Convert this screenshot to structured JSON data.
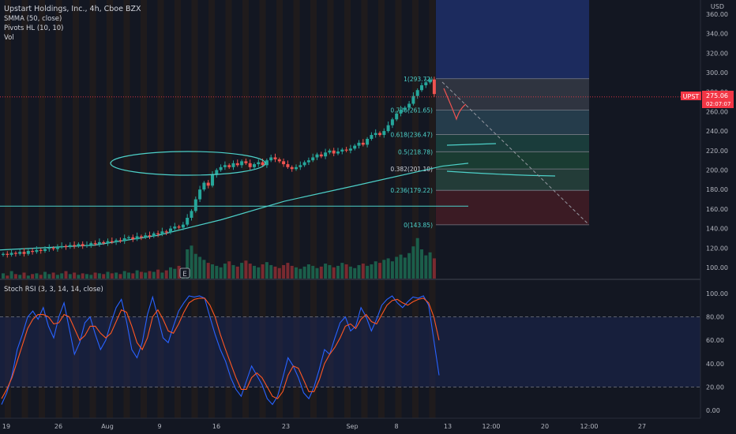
{
  "header": {
    "symbol_line": "Upstart Holdings, Inc., 4h, Cboe BZX",
    "indicators": [
      "SMMA (50, close)",
      "Pivots HL (10, 10)",
      "Vol"
    ]
  },
  "currency_label": "USD",
  "stoch_label": "Stoch RSI (3, 3, 14, 14, close)",
  "price_badge": {
    "ticker": "UPST",
    "price": "275.06",
    "countdown": "02:07:07"
  },
  "earnings_marker": "E",
  "colors": {
    "background": "#131722",
    "up": "#26a69a",
    "down": "#ef5350",
    "smma": "#4dd0c8",
    "stoch_k": "#2962ff",
    "stoch_d": "#ff5722",
    "axis_text": "#b2b5be",
    "badge": "#f23645"
  },
  "chart_data": [
    {
      "type": "candlestick",
      "title": "Upstart Holdings, Inc., 4h, Cboe BZX",
      "ylim": [
        85,
        366
      ],
      "y_ticks": [
        "100.00",
        "120.00",
        "140.00",
        "160.00",
        "180.00",
        "200.00",
        "220.00",
        "240.00",
        "260.00",
        "280.00",
        "300.00",
        "320.00",
        "340.00",
        "360.00"
      ],
      "x_labels": [
        "19",
        "26",
        "Aug",
        "9",
        "16",
        "23",
        "Sep",
        "8",
        "13",
        "12:00",
        "20",
        "12:00",
        "27"
      ],
      "closes": [
        114,
        113,
        115,
        114,
        116,
        114,
        117,
        116,
        118,
        117,
        119,
        120,
        119,
        121,
        122,
        121,
        123,
        122,
        124,
        122,
        123,
        125,
        124,
        126,
        125,
        127,
        126,
        128,
        127,
        130,
        131,
        129,
        132,
        131,
        133,
        132,
        135,
        134,
        137,
        136,
        140,
        142,
        141,
        144,
        151,
        158,
        170,
        180,
        187,
        184,
        195,
        200,
        203,
        205,
        203,
        207,
        205,
        209,
        207,
        203,
        206,
        208,
        205,
        210,
        213,
        211,
        209,
        206,
        203,
        201,
        203,
        205,
        208,
        210,
        213,
        216,
        214,
        218,
        220,
        217,
        219,
        221,
        220,
        222,
        225,
        228,
        226,
        232,
        236,
        238,
        236,
        240,
        246,
        252,
        258,
        262,
        264,
        268,
        276,
        282,
        287,
        290,
        293,
        278
      ],
      "smma": {
        "name": "SMMA (50, close)",
        "points": [
          [
            0,
            118
          ],
          [
            120,
            123
          ],
          [
            200,
            133
          ],
          [
            280,
            149
          ],
          [
            360,
            168
          ],
          [
            450,
            184
          ],
          [
            560,
            204
          ],
          [
            593,
            207
          ]
        ]
      },
      "horizontal_line": 163,
      "fibonacci": [
        {
          "label": "1(293.72)",
          "level": 293.72
        },
        {
          "label": "0.786(261.65)",
          "level": 261.65
        },
        {
          "label": "0.618(236.47)",
          "level": 236.47
        },
        {
          "label": "0.5(218.78)",
          "level": 218.78
        },
        {
          "label": "0.382(201.10)",
          "level": 201.1
        },
        {
          "label": "0.236(179.22)",
          "level": 179.22
        },
        {
          "label": "0(143.85)",
          "level": 143.85
        }
      ],
      "volume": [
        8,
        5,
        11,
        7,
        6,
        9,
        5,
        7,
        8,
        6,
        10,
        7,
        9,
        6,
        8,
        11,
        7,
        9,
        6,
        8,
        7,
        6,
        9,
        8,
        7,
        10,
        8,
        9,
        7,
        11,
        9,
        8,
        12,
        10,
        9,
        11,
        10,
        13,
        9,
        12,
        16,
        14,
        18,
        15,
        40,
        45,
        34,
        30,
        26,
        22,
        20,
        18,
        16,
        21,
        24,
        19,
        17,
        22,
        25,
        21,
        18,
        16,
        20,
        23,
        19,
        17,
        15,
        19,
        22,
        18,
        16,
        14,
        17,
        20,
        18,
        15,
        17,
        21,
        19,
        16,
        18,
        22,
        20,
        17,
        15,
        19,
        21,
        18,
        20,
        24,
        22,
        26,
        28,
        24,
        30,
        33,
        29,
        35,
        44,
        55,
        40,
        32,
        36,
        28
      ]
    },
    {
      "type": "line",
      "title": "Stoch RSI (3, 3, 14, 14, close)",
      "ylim": [
        -8,
        110
      ],
      "y_ticks": [
        "0.00",
        "20.00",
        "40.00",
        "60.00",
        "80.00",
        "100.00"
      ],
      "bands": [
        20,
        80
      ],
      "series": [
        {
          "name": "K",
          "values": [
            5,
            15,
            30,
            52,
            65,
            80,
            85,
            78,
            88,
            72,
            62,
            80,
            92,
            70,
            48,
            58,
            75,
            80,
            65,
            52,
            60,
            75,
            88,
            95,
            76,
            52,
            45,
            58,
            82,
            97,
            80,
            62,
            58,
            72,
            85,
            92,
            98,
            97,
            98,
            96,
            80,
            65,
            52,
            42,
            28,
            18,
            12,
            25,
            38,
            30,
            22,
            10,
            5,
            12,
            28,
            45,
            38,
            28,
            15,
            10,
            20,
            35,
            52,
            48,
            62,
            75,
            80,
            68,
            72,
            88,
            80,
            68,
            78,
            90,
            95,
            98,
            92,
            88,
            93,
            97,
            96,
            98,
            90,
            60,
            30
          ]
        },
        {
          "name": "D",
          "values": [
            10,
            18,
            28,
            42,
            56,
            70,
            78,
            82,
            82,
            80,
            74,
            75,
            82,
            80,
            70,
            60,
            64,
            72,
            72,
            66,
            62,
            66,
            76,
            86,
            84,
            72,
            58,
            52,
            62,
            80,
            86,
            78,
            68,
            66,
            74,
            84,
            92,
            95,
            96,
            96,
            90,
            80,
            65,
            52,
            40,
            28,
            18,
            18,
            28,
            32,
            28,
            20,
            12,
            10,
            16,
            30,
            38,
            36,
            26,
            16,
            16,
            26,
            40,
            48,
            54,
            62,
            72,
            74,
            70,
            78,
            82,
            76,
            74,
            82,
            90,
            94,
            95,
            92,
            90,
            93,
            95,
            96,
            92,
            80,
            60
          ]
        }
      ]
    }
  ]
}
